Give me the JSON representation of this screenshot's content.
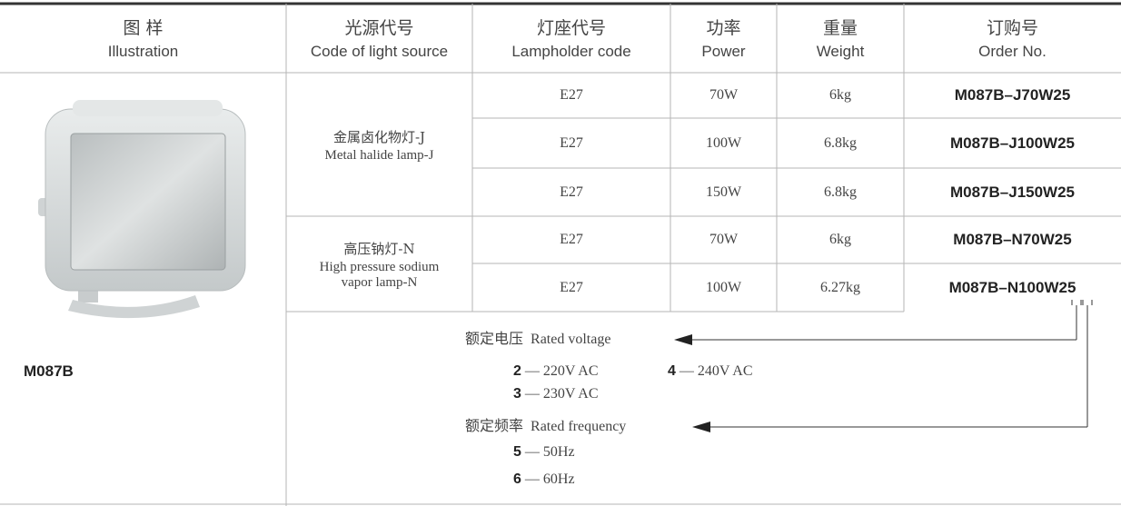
{
  "header": [
    {
      "zh": "图 样",
      "en": "Illustration"
    },
    {
      "zh": "光源代号",
      "en": "Code of light source"
    },
    {
      "zh": "灯座代号",
      "en": "Lampholder code"
    },
    {
      "zh": "功率",
      "en": "Power"
    },
    {
      "zh": "重量",
      "en": "Weight"
    },
    {
      "zh": "订购号",
      "en": "Order No."
    }
  ],
  "model": "M087B",
  "groups": [
    {
      "zh": "金属卤化物灯-J",
      "en": [
        "Metal halide lamp-J"
      ],
      "rows": [
        [
          "E27",
          "70W",
          "6kg",
          "M087B–J70W25"
        ],
        [
          "E27",
          "100W",
          "6.8kg",
          "M087B–J100W25"
        ],
        [
          "E27",
          "150W",
          "6.8kg",
          "M087B–J150W25"
        ]
      ]
    },
    {
      "zh": "高压钠灯-N",
      "en": [
        "High pressure sodium",
        "vapor lamp-N"
      ],
      "rows": [
        [
          "E27",
          "70W",
          "6kg",
          "M087B–N70W25"
        ],
        [
          "E27",
          "100W",
          "6.27kg",
          "M087B–N100W25"
        ]
      ]
    }
  ],
  "legend": {
    "voltage": {
      "zh": "额定电压",
      "en": "Rated voltage",
      "options": [
        {
          "code": "2",
          "text": "— 220V AC"
        },
        {
          "code": "4",
          "text": "— 240V AC"
        },
        {
          "code": "3",
          "text": "— 230V AC"
        }
      ]
    },
    "frequency": {
      "zh": "额定频率",
      "en": "Rated frequency",
      "options": [
        {
          "code": "5",
          "text": "— 50Hz"
        },
        {
          "code": "6",
          "text": "— 60Hz"
        }
      ]
    }
  }
}
